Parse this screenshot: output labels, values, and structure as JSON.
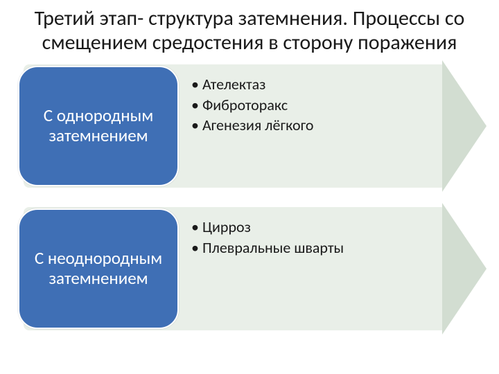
{
  "title": "Третий этап- структура затемнения. Процессы со смещением средостения в сторону поражения",
  "title_fontsize": 30,
  "title_weight": 400,
  "arrow_body_color": "#e9efe8",
  "arrow_head_color": "#d2ddd1",
  "arrow_head_width": 64,
  "arrow_head_half_height": 95,
  "pill_color": "#3f6fb5",
  "pill_fontsize": 25,
  "bullet_fontsize": 22,
  "text_color": "#1a1a1a",
  "rows": [
    {
      "label": "С однородным затемнением",
      "bullets": [
        "Ателектаз",
        "Фиброторакс",
        "Агенезия лёгкого"
      ]
    },
    {
      "label": "С неоднородным затемнением",
      "bullets": [
        "Цирроз",
        "Плевральные шварты"
      ]
    }
  ]
}
